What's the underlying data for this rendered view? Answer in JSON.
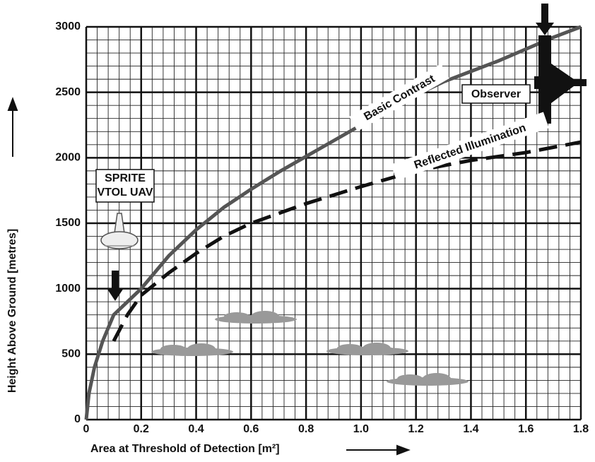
{
  "chart_data": {
    "type": "line",
    "xlabel": "Area at Threshold of Detection [m²]",
    "ylabel": "Height Above Ground [metres]",
    "xlim": [
      0,
      1.8
    ],
    "ylim": [
      0,
      3000
    ],
    "xticks": [
      0,
      0.2,
      0.4,
      0.6,
      0.8,
      {
        "value": 1,
        "label": "1.0"
      },
      1.2,
      1.4,
      1.6,
      1.8
    ],
    "yticks": [
      0,
      500,
      1000,
      1500,
      2000,
      2500,
      3000
    ],
    "grid": true,
    "minor_grid_divisions": 5,
    "series": [
      {
        "name": "Basic Contrast",
        "color": "#555555",
        "dashed": false,
        "x": [
          0,
          0.01,
          0.03,
          0.06,
          0.1,
          0.2,
          0.3,
          0.4,
          0.5,
          0.6,
          0.7,
          0.8,
          0.9,
          1.0,
          1.1,
          1.2,
          1.3,
          1.4,
          1.5,
          1.6,
          1.7,
          1.8
        ],
        "values": [
          0,
          200,
          400,
          600,
          800,
          1000,
          1250,
          1450,
          1620,
          1760,
          1890,
          2010,
          2130,
          2250,
          2370,
          2480,
          2580,
          2660,
          2740,
          2830,
          2920,
          3000
        ]
      },
      {
        "name": "Reflected Illumination",
        "color": "#111111",
        "dashed": true,
        "x": [
          0.1,
          0.15,
          0.2,
          0.3,
          0.4,
          0.5,
          0.6,
          0.8,
          1.0,
          1.2,
          1.4,
          1.6,
          1.8
        ],
        "values": [
          600,
          800,
          950,
          1120,
          1270,
          1400,
          1500,
          1650,
          1780,
          1900,
          1980,
          2040,
          2120
        ]
      }
    ],
    "annotations": [
      "Observer",
      "SPRITE",
      "VTOL UAV"
    ]
  }
}
